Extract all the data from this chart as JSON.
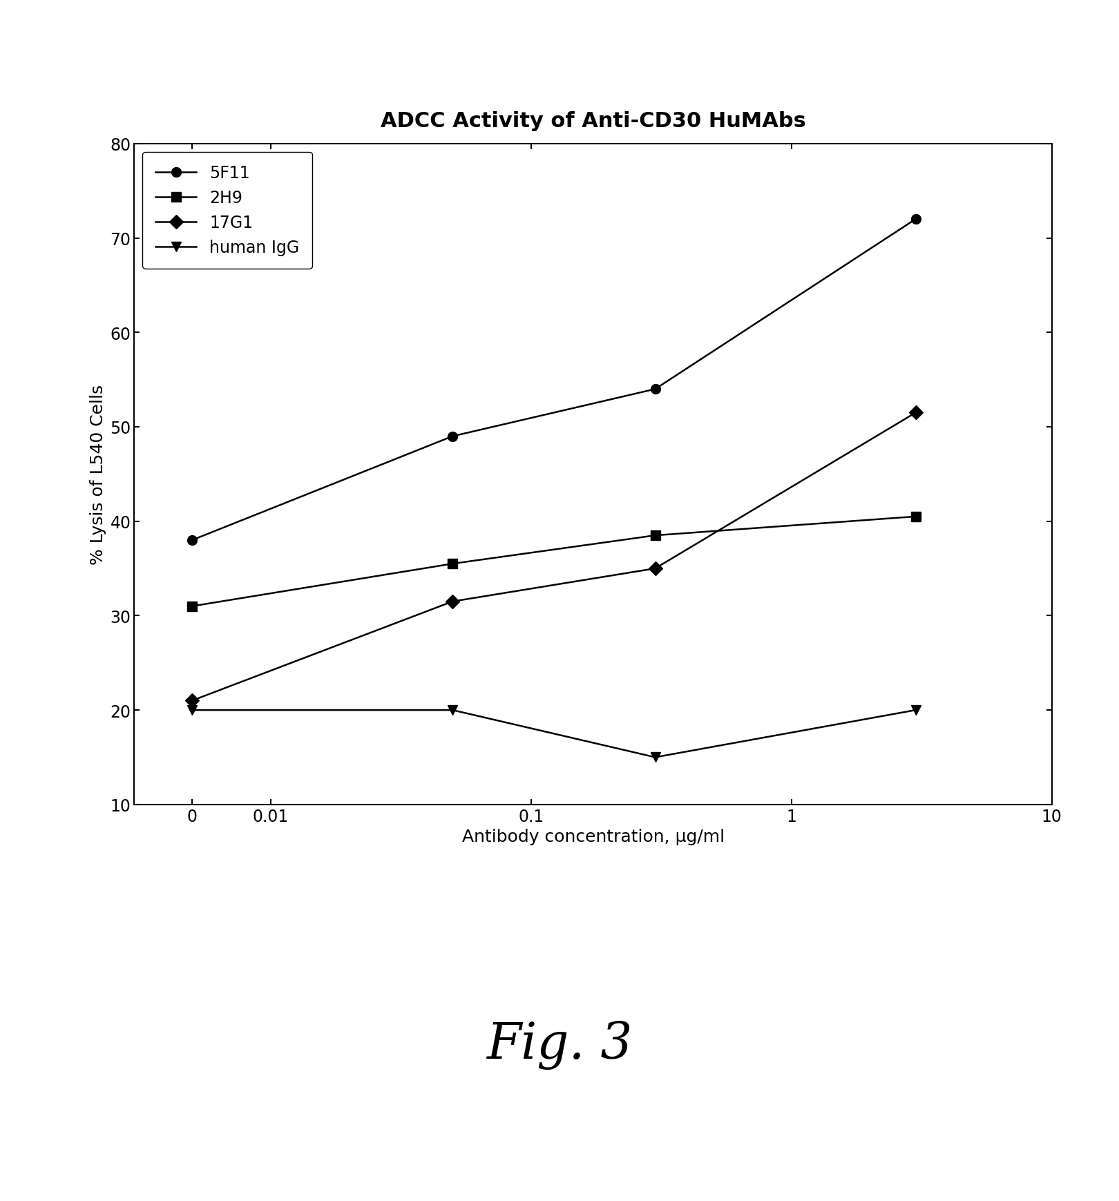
{
  "title": "ADCC Activity of Anti-CD30 HuMAbs",
  "xlabel": "Antibody concentration, μg/ml",
  "ylabel": "% Lysis of L540 Cells",
  "fig_label": "Fig. 3",
  "xlim": [
    0.003,
    10
  ],
  "ylim": [
    10,
    80
  ],
  "yticks": [
    10,
    20,
    30,
    40,
    50,
    60,
    70,
    80
  ],
  "x_tick_positions": [
    0.005,
    0.01,
    0.1,
    1,
    10
  ],
  "x_tick_labels": [
    "0",
    "0.01",
    "0.1",
    "1",
    "10"
  ],
  "series": [
    {
      "label": "5F11",
      "x": [
        0.005,
        0.05,
        0.3,
        3
      ],
      "y": [
        38,
        49,
        54,
        72
      ],
      "marker": "o",
      "color": "#000000",
      "linestyle": "-"
    },
    {
      "label": "2H9",
      "x": [
        0.005,
        0.05,
        0.3,
        3
      ],
      "y": [
        31,
        35.5,
        38.5,
        40.5
      ],
      "marker": "s",
      "color": "#000000",
      "linestyle": "-"
    },
    {
      "label": "17G1",
      "x": [
        0.005,
        0.05,
        0.3,
        3
      ],
      "y": [
        21,
        31.5,
        35,
        51.5
      ],
      "marker": "D",
      "color": "#000000",
      "linestyle": "-"
    },
    {
      "label": "human IgG",
      "x": [
        0.005,
        0.05,
        0.3,
        3
      ],
      "y": [
        20,
        20,
        15,
        20
      ],
      "marker": "v",
      "color": "#000000",
      "linestyle": "-"
    }
  ],
  "legend_loc": "upper left",
  "background_color": "#ffffff",
  "title_fontsize": 22,
  "label_fontsize": 18,
  "tick_fontsize": 17,
  "legend_fontsize": 17,
  "marker_size": 10,
  "linewidth": 1.8,
  "fig_label_fontsize": 52
}
